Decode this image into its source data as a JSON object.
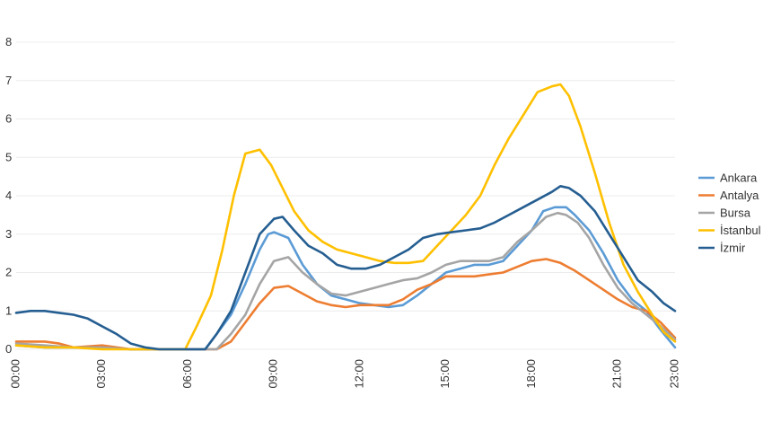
{
  "chart_data": {
    "type": "line",
    "title": "",
    "xlabel": "",
    "ylabel": "",
    "ylim": [
      0,
      8
    ],
    "yticks": [
      0,
      1,
      2,
      3,
      4,
      5,
      6,
      7,
      8
    ],
    "xlim": [
      0,
      23
    ],
    "xticks": [
      0,
      3,
      6,
      9,
      12,
      15,
      18,
      21,
      23
    ],
    "xtick_labels": [
      "00:00",
      "03:00",
      "06:00",
      "09:00",
      "12:00",
      "15:00",
      "18:00",
      "21:00",
      "23:00"
    ],
    "grid": true,
    "legend_position": "right",
    "series": [
      {
        "name": "Ankara",
        "color": "#5b9bd5",
        "points": [
          [
            0,
            0.1
          ],
          [
            1,
            0.05
          ],
          [
            2,
            0.05
          ],
          [
            3,
            0.05
          ],
          [
            4,
            0
          ],
          [
            5,
            0
          ],
          [
            6,
            0
          ],
          [
            6.6,
            0
          ],
          [
            7,
            0.4
          ],
          [
            7.5,
            0.9
          ],
          [
            8,
            1.7
          ],
          [
            8.5,
            2.6
          ],
          [
            8.8,
            3.0
          ],
          [
            9,
            3.05
          ],
          [
            9.5,
            2.9
          ],
          [
            10,
            2.2
          ],
          [
            10.5,
            1.7
          ],
          [
            11,
            1.4
          ],
          [
            11.5,
            1.3
          ],
          [
            12,
            1.2
          ],
          [
            12.5,
            1.15
          ],
          [
            13,
            1.1
          ],
          [
            13.5,
            1.15
          ],
          [
            14,
            1.4
          ],
          [
            14.5,
            1.7
          ],
          [
            15,
            2.0
          ],
          [
            15.5,
            2.1
          ],
          [
            16,
            2.2
          ],
          [
            16.5,
            2.2
          ],
          [
            17,
            2.3
          ],
          [
            17.5,
            2.7
          ],
          [
            18,
            3.1
          ],
          [
            18.4,
            3.6
          ],
          [
            18.8,
            3.7
          ],
          [
            19.2,
            3.7
          ],
          [
            19.5,
            3.5
          ],
          [
            20,
            3.1
          ],
          [
            20.5,
            2.5
          ],
          [
            21,
            1.8
          ],
          [
            21.5,
            1.3
          ],
          [
            22,
            1.0
          ],
          [
            22.5,
            0.5
          ],
          [
            23,
            0.05
          ]
        ]
      },
      {
        "name": "Antalya",
        "color": "#ed7d31",
        "points": [
          [
            0,
            0.2
          ],
          [
            1,
            0.2
          ],
          [
            1.5,
            0.15
          ],
          [
            2,
            0.05
          ],
          [
            3,
            0.1
          ],
          [
            4,
            0
          ],
          [
            5,
            0
          ],
          [
            6,
            0
          ],
          [
            7,
            0
          ],
          [
            7.5,
            0.2
          ],
          [
            8,
            0.7
          ],
          [
            8.5,
            1.2
          ],
          [
            9,
            1.6
          ],
          [
            9.5,
            1.65
          ],
          [
            10,
            1.45
          ],
          [
            10.5,
            1.25
          ],
          [
            11,
            1.15
          ],
          [
            11.5,
            1.1
          ],
          [
            12,
            1.15
          ],
          [
            12.5,
            1.15
          ],
          [
            13,
            1.15
          ],
          [
            13.5,
            1.3
          ],
          [
            14,
            1.55
          ],
          [
            14.5,
            1.7
          ],
          [
            15,
            1.9
          ],
          [
            15.5,
            1.9
          ],
          [
            16,
            1.9
          ],
          [
            16.5,
            1.95
          ],
          [
            17,
            2.0
          ],
          [
            17.5,
            2.15
          ],
          [
            18,
            2.3
          ],
          [
            18.5,
            2.35
          ],
          [
            19,
            2.25
          ],
          [
            19.5,
            2.05
          ],
          [
            20,
            1.8
          ],
          [
            20.5,
            1.55
          ],
          [
            21,
            1.3
          ],
          [
            21.5,
            1.1
          ],
          [
            22,
            1.0
          ],
          [
            22.5,
            0.7
          ],
          [
            23,
            0.3
          ]
        ]
      },
      {
        "name": "Bursa",
        "color": "#a5a5a5",
        "points": [
          [
            0,
            0.15
          ],
          [
            1,
            0.1
          ],
          [
            2,
            0.05
          ],
          [
            3,
            0.05
          ],
          [
            4,
            0
          ],
          [
            5,
            0
          ],
          [
            6,
            0
          ],
          [
            7,
            0
          ],
          [
            7.5,
            0.4
          ],
          [
            8,
            0.9
          ],
          [
            8.5,
            1.7
          ],
          [
            9,
            2.3
          ],
          [
            9.5,
            2.4
          ],
          [
            10,
            2.0
          ],
          [
            10.5,
            1.7
          ],
          [
            11,
            1.45
          ],
          [
            11.5,
            1.4
          ],
          [
            12,
            1.5
          ],
          [
            12.5,
            1.6
          ],
          [
            13,
            1.7
          ],
          [
            13.5,
            1.8
          ],
          [
            14,
            1.85
          ],
          [
            14.5,
            2.0
          ],
          [
            15,
            2.2
          ],
          [
            15.5,
            2.3
          ],
          [
            16,
            2.3
          ],
          [
            16.5,
            2.3
          ],
          [
            17,
            2.4
          ],
          [
            17.5,
            2.8
          ],
          [
            18,
            3.1
          ],
          [
            18.5,
            3.45
          ],
          [
            18.9,
            3.55
          ],
          [
            19.2,
            3.5
          ],
          [
            19.6,
            3.3
          ],
          [
            20,
            2.9
          ],
          [
            20.5,
            2.2
          ],
          [
            21,
            1.6
          ],
          [
            21.5,
            1.2
          ],
          [
            22,
            0.9
          ],
          [
            22.5,
            0.6
          ],
          [
            23,
            0.25
          ]
        ]
      },
      {
        "name": "İstanbul",
        "color": "#ffc000",
        "points": [
          [
            0,
            0.1
          ],
          [
            1,
            0.05
          ],
          [
            2,
            0.05
          ],
          [
            3,
            0
          ],
          [
            4,
            0
          ],
          [
            5,
            0
          ],
          [
            5.9,
            0
          ],
          [
            6.3,
            0.6
          ],
          [
            6.8,
            1.4
          ],
          [
            7.2,
            2.6
          ],
          [
            7.6,
            4.0
          ],
          [
            8,
            5.1
          ],
          [
            8.5,
            5.2
          ],
          [
            8.9,
            4.8
          ],
          [
            9.3,
            4.2
          ],
          [
            9.7,
            3.6
          ],
          [
            10.2,
            3.1
          ],
          [
            10.7,
            2.8
          ],
          [
            11.2,
            2.6
          ],
          [
            11.7,
            2.5
          ],
          [
            12.2,
            2.4
          ],
          [
            12.7,
            2.3
          ],
          [
            13.2,
            2.25
          ],
          [
            13.7,
            2.25
          ],
          [
            14.2,
            2.3
          ],
          [
            14.7,
            2.7
          ],
          [
            15.2,
            3.1
          ],
          [
            15.7,
            3.5
          ],
          [
            16.2,
            4.0
          ],
          [
            16.7,
            4.8
          ],
          [
            17.2,
            5.5
          ],
          [
            17.7,
            6.1
          ],
          [
            18.2,
            6.7
          ],
          [
            18.7,
            6.85
          ],
          [
            19,
            6.9
          ],
          [
            19.3,
            6.6
          ],
          [
            19.7,
            5.8
          ],
          [
            20.2,
            4.6
          ],
          [
            20.7,
            3.3
          ],
          [
            21.2,
            2.2
          ],
          [
            21.7,
            1.5
          ],
          [
            22.2,
            0.9
          ],
          [
            22.6,
            0.45
          ],
          [
            23,
            0.2
          ]
        ]
      },
      {
        "name": "İzmir",
        "color": "#255e91",
        "points": [
          [
            0,
            0.95
          ],
          [
            0.5,
            1.0
          ],
          [
            1,
            1.0
          ],
          [
            1.5,
            0.95
          ],
          [
            2,
            0.9
          ],
          [
            2.5,
            0.8
          ],
          [
            3,
            0.6
          ],
          [
            3.5,
            0.4
          ],
          [
            4,
            0.15
          ],
          [
            4.5,
            0.05
          ],
          [
            5,
            0
          ],
          [
            5.5,
            0
          ],
          [
            6,
            0
          ],
          [
            6.6,
            0
          ],
          [
            7,
            0.4
          ],
          [
            7.5,
            1.0
          ],
          [
            8,
            2.0
          ],
          [
            8.5,
            3.0
          ],
          [
            9,
            3.4
          ],
          [
            9.3,
            3.45
          ],
          [
            9.7,
            3.1
          ],
          [
            10.2,
            2.7
          ],
          [
            10.7,
            2.5
          ],
          [
            11.2,
            2.2
          ],
          [
            11.7,
            2.1
          ],
          [
            12.2,
            2.1
          ],
          [
            12.7,
            2.2
          ],
          [
            13.2,
            2.4
          ],
          [
            13.7,
            2.6
          ],
          [
            14.2,
            2.9
          ],
          [
            14.7,
            3.0
          ],
          [
            15.2,
            3.05
          ],
          [
            15.7,
            3.1
          ],
          [
            16.2,
            3.15
          ],
          [
            16.7,
            3.3
          ],
          [
            17.2,
            3.5
          ],
          [
            17.7,
            3.7
          ],
          [
            18.2,
            3.9
          ],
          [
            18.7,
            4.1
          ],
          [
            19,
            4.25
          ],
          [
            19.3,
            4.2
          ],
          [
            19.7,
            4.0
          ],
          [
            20.2,
            3.6
          ],
          [
            20.7,
            3.0
          ],
          [
            21.2,
            2.4
          ],
          [
            21.7,
            1.8
          ],
          [
            22.2,
            1.5
          ],
          [
            22.6,
            1.2
          ],
          [
            23,
            1.0
          ]
        ]
      }
    ]
  }
}
